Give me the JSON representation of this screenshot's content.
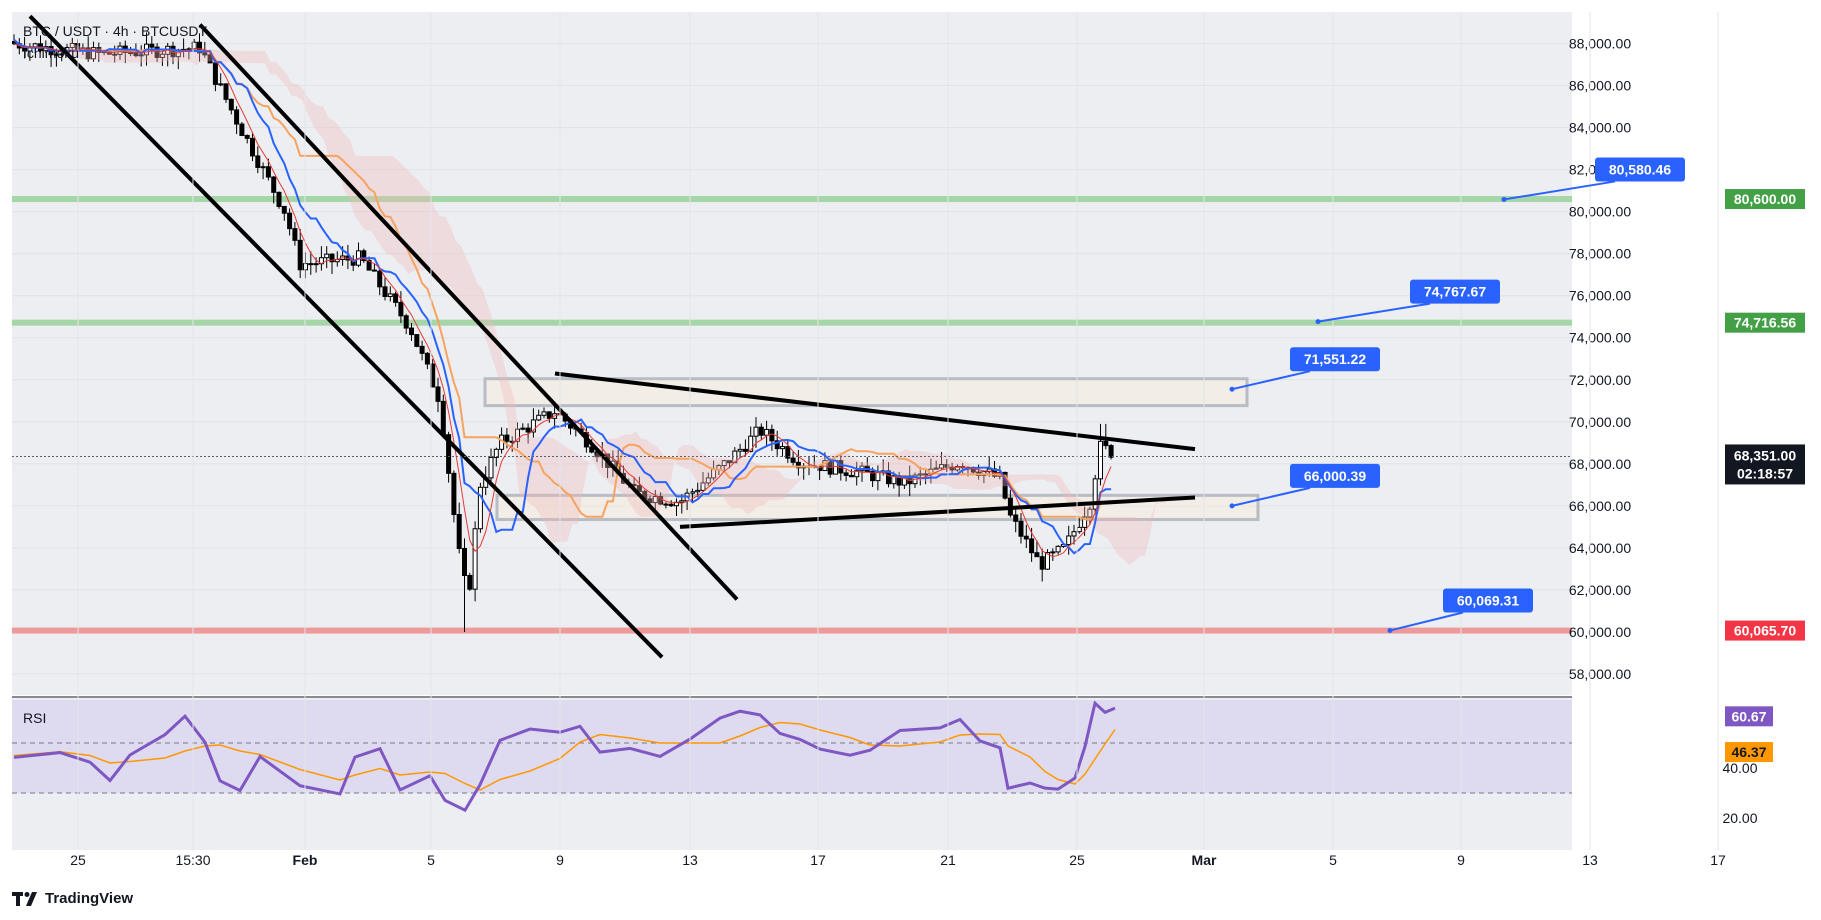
{
  "header": {
    "symbol": "BTC / USDT · 4h · BTCUSDT",
    "indicator": "Ichimoku"
  },
  "footer": {
    "brand": "TradingView"
  },
  "colors": {
    "up": "#ffffff",
    "down": "#000000",
    "tenkan": "#2962ff",
    "kijun": "#f7a360",
    "support": "#a5d6a7",
    "resistance": "#ef9a9a",
    "rsi": "#7e57c2",
    "rsi_ma": "#ff9800",
    "badge": "#2962ff"
  },
  "chart_data": {
    "type": "candlestick",
    "ylim": [
      57000,
      89500
    ],
    "y_ticks": [
      "88,000.00",
      "86,000.00",
      "84,000.00",
      "82,000.00",
      "80,000.00",
      "78,000.00",
      "76,000.00",
      "74,000.00",
      "72,000.00",
      "70,000.00",
      "68,000.00",
      "66,000.00",
      "64,000.00",
      "62,000.00",
      "60,000.00",
      "58,000.00"
    ],
    "x_ticks": [
      "25",
      "15:30",
      "Feb",
      "5",
      "9",
      "13",
      "17",
      "21",
      "25",
      "Mar",
      "5",
      "9",
      "13",
      "17"
    ],
    "current_price": "68,351.00",
    "countdown": "02:18:57",
    "levels": [
      {
        "label": "80,600.00",
        "value": 80600,
        "type": "support"
      },
      {
        "label": "74,716.56",
        "value": 74716.56,
        "type": "support"
      },
      {
        "label": "60,065.70",
        "value": 60065.7,
        "type": "resistance"
      }
    ],
    "callouts": [
      {
        "label": "80,580.46",
        "value": 80580.46
      },
      {
        "label": "74,767.67",
        "value": 74767.67
      },
      {
        "label": "71,551.22",
        "value": 71551.22
      },
      {
        "label": "66,000.39",
        "value": 66000.39
      },
      {
        "label": "60,069.31",
        "value": 60069.31
      }
    ],
    "rsi": {
      "title": "RSI",
      "value_label": "60.67",
      "ma_label": "46.37",
      "tick_labels": [
        "40.00",
        "20.00"
      ],
      "band_upper": 70,
      "band_mid": 50,
      "band_lower": 30,
      "ylim": [
        10,
        80
      ]
    }
  }
}
